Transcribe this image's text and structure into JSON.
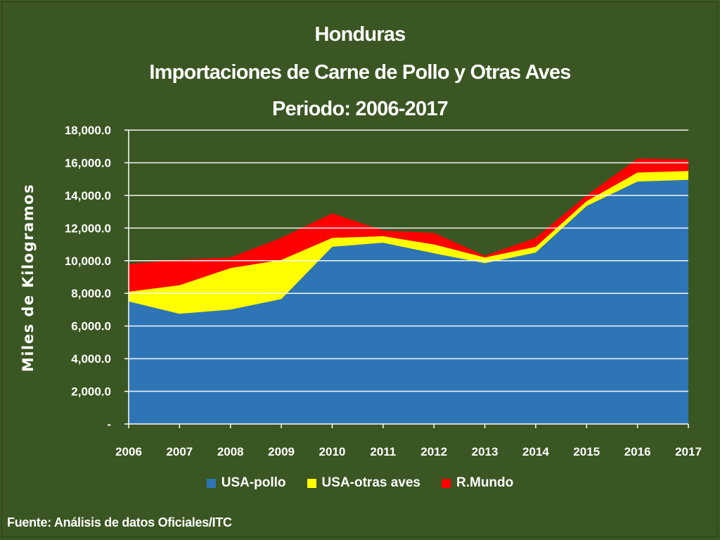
{
  "chart_data": {
    "type": "area",
    "title_lines": [
      "Honduras",
      "Importaciones de Carne de Pollo y Otras Aves",
      "Periodo: 2006-2017"
    ],
    "ylabel": "Miles de Kilogramos",
    "xlabel": "",
    "x": [
      "2006",
      "2007",
      "2008",
      "2009",
      "2010",
      "2011",
      "2012",
      "2013",
      "2014",
      "2015",
      "2016",
      "2017"
    ],
    "ylim": [
      0,
      18000
    ],
    "y_ticks": [
      "-",
      "2,000.0",
      "4,000.0",
      "6,000.0",
      "8,000.0",
      "10,000.0",
      "12,000.0",
      "14,000.0",
      "16,000.0",
      "18,000.0"
    ],
    "stacked": true,
    "grid": true,
    "legend_position": "bottom",
    "series": [
      {
        "name": "USA-pollo",
        "color": "#2e75b6",
        "values": [
          7500,
          6750,
          7000,
          7650,
          10850,
          11100,
          10450,
          9850,
          10500,
          13350,
          14850,
          14950
        ]
      },
      {
        "name": "USA-otras aves",
        "color": "#ffff00",
        "values": [
          600,
          1750,
          2550,
          2400,
          550,
          400,
          550,
          350,
          350,
          300,
          550,
          550
        ]
      },
      {
        "name": "R.Mundo",
        "color": "#ff0000",
        "values": [
          1700,
          1550,
          650,
          1350,
          1500,
          350,
          700,
          100,
          550,
          350,
          850,
          700
        ]
      }
    ]
  },
  "footer": {
    "source": "Fuente: Análisis de datos Oficiales/ITC"
  }
}
